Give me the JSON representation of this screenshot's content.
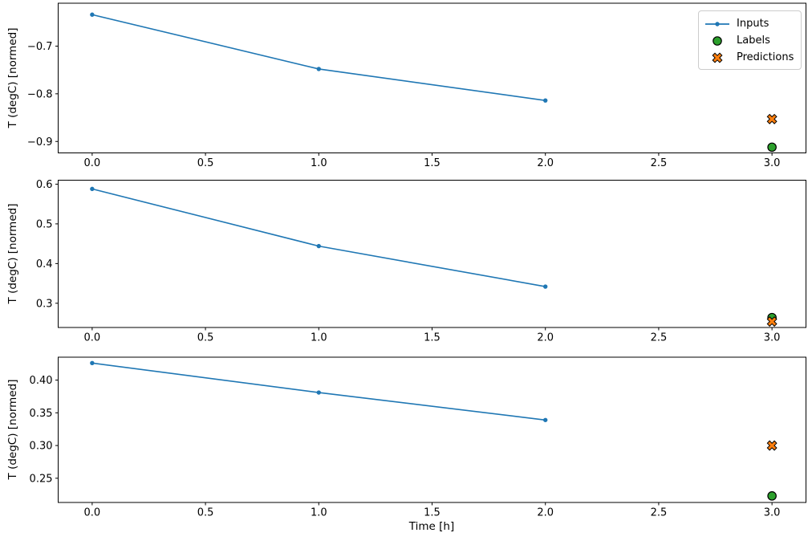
{
  "figure": {
    "xlabel": "Time [h]",
    "ylabel": "T (degC) [normed]"
  },
  "colors": {
    "inputs": "#1f77b4",
    "labels": "#2ca02c",
    "predictions": "#ff7f0e",
    "marker_edge": "#000000",
    "axes": "#000000",
    "legend_border": "#cccccc"
  },
  "legend": {
    "position": "upper right",
    "items": [
      {
        "label": "Inputs",
        "marker": "line-dot",
        "color": "#1f77b4"
      },
      {
        "label": "Labels",
        "marker": "circle",
        "color": "#2ca02c"
      },
      {
        "label": "Predictions",
        "marker": "x-cross",
        "color": "#ff7f0e"
      }
    ]
  },
  "chart_data": [
    {
      "type": "line",
      "title": "",
      "xlabel": "",
      "ylabel": "T (degC) [normed]",
      "grid": false,
      "xlim": [
        -0.15,
        3.15
      ],
      "ylim": [
        -0.924,
        -0.61
      ],
      "xticks": [
        0.0,
        0.5,
        1.0,
        1.5,
        2.0,
        2.5,
        3.0
      ],
      "xtick_labels": [
        "0.0",
        "0.5",
        "1.0",
        "1.5",
        "2.0",
        "2.5",
        "3.0"
      ],
      "yticks": [
        -0.9,
        -0.8,
        -0.7
      ],
      "ytick_labels": [
        "−0.9",
        "−0.8",
        "−0.7"
      ],
      "series": [
        {
          "name": "Inputs",
          "type": "line",
          "marker": "dot",
          "color": "#1f77b4",
          "x": [
            0.0,
            1.0,
            2.0
          ],
          "y": [
            -0.634,
            -0.748,
            -0.814
          ]
        },
        {
          "name": "Labels",
          "type": "scatter",
          "marker": "circle",
          "color": "#2ca02c",
          "x": [
            3.0
          ],
          "y": [
            -0.912
          ]
        },
        {
          "name": "Predictions",
          "type": "scatter",
          "marker": "X",
          "color": "#ff7f0e",
          "x": [
            3.0
          ],
          "y": [
            -0.853
          ]
        }
      ]
    },
    {
      "type": "line",
      "title": "",
      "xlabel": "",
      "ylabel": "T (degC) [normed]",
      "grid": false,
      "xlim": [
        -0.15,
        3.15
      ],
      "ylim": [
        0.239,
        0.61
      ],
      "xticks": [
        0.0,
        0.5,
        1.0,
        1.5,
        2.0,
        2.5,
        3.0
      ],
      "xtick_labels": [
        "0.0",
        "0.5",
        "1.0",
        "1.5",
        "2.0",
        "2.5",
        "3.0"
      ],
      "yticks": [
        0.3,
        0.4,
        0.5,
        0.6
      ],
      "ytick_labels": [
        "0.3",
        "0.4",
        "0.5",
        "0.6"
      ],
      "series": [
        {
          "name": "Inputs",
          "type": "line",
          "marker": "dot",
          "color": "#1f77b4",
          "x": [
            0.0,
            1.0,
            2.0
          ],
          "y": [
            0.588,
            0.444,
            0.342
          ]
        },
        {
          "name": "Labels",
          "type": "scatter",
          "marker": "circle",
          "color": "#2ca02c",
          "x": [
            3.0
          ],
          "y": [
            0.264
          ]
        },
        {
          "name": "Predictions",
          "type": "scatter",
          "marker": "X",
          "color": "#ff7f0e",
          "x": [
            3.0
          ],
          "y": [
            0.254
          ]
        }
      ]
    },
    {
      "type": "line",
      "title": "",
      "xlabel": "Time [h]",
      "ylabel": "T (degC) [normed]",
      "grid": false,
      "xlim": [
        -0.15,
        3.15
      ],
      "ylim": [
        0.213,
        0.435
      ],
      "xticks": [
        0.0,
        0.5,
        1.0,
        1.5,
        2.0,
        2.5,
        3.0
      ],
      "xtick_labels": [
        "0.0",
        "0.5",
        "1.0",
        "1.5",
        "2.0",
        "2.5",
        "3.0"
      ],
      "yticks": [
        0.25,
        0.3,
        0.35,
        0.4
      ],
      "ytick_labels": [
        "0.25",
        "0.30",
        "0.35",
        "0.40"
      ],
      "series": [
        {
          "name": "Inputs",
          "type": "line",
          "marker": "dot",
          "color": "#1f77b4",
          "x": [
            0.0,
            1.0,
            2.0
          ],
          "y": [
            0.426,
            0.381,
            0.339
          ]
        },
        {
          "name": "Labels",
          "type": "scatter",
          "marker": "circle",
          "color": "#2ca02c",
          "x": [
            3.0
          ],
          "y": [
            0.223
          ]
        },
        {
          "name": "Predictions",
          "type": "scatter",
          "marker": "X",
          "color": "#ff7f0e",
          "x": [
            3.0
          ],
          "y": [
            0.3
          ]
        }
      ]
    }
  ]
}
